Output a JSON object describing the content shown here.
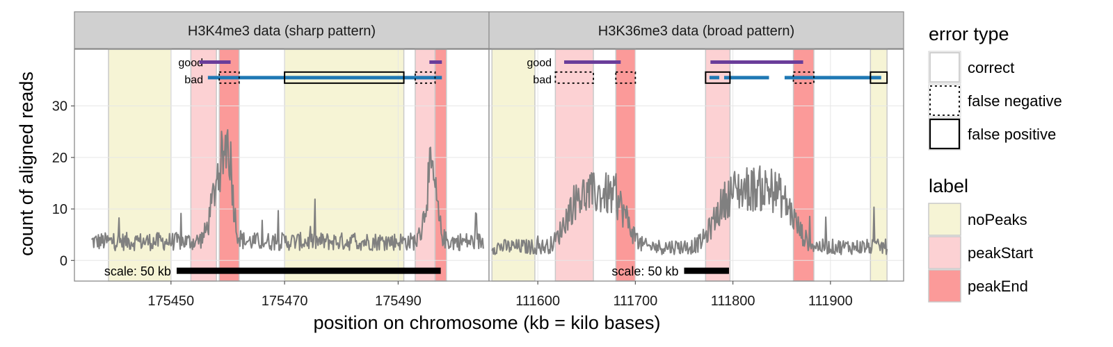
{
  "chart_data": {
    "type": "line",
    "ylabel": "count of aligned reads",
    "xlabel": "position on chromosome (kb = kilo bases)",
    "y_ticks": [
      0,
      10,
      20,
      30
    ],
    "ylim": [
      -4,
      41
    ],
    "grid": true,
    "legend_placement": "right",
    "colors": {
      "noPeaks": "#f6f4d5",
      "peakStart": "#fcd1d3",
      "peakEnd": "#fb9a99",
      "coverage": "#808080",
      "good_model": "#6a3d9a",
      "bad_model": "#1f78b4",
      "strip_bg": "#d0d0d0",
      "panel_border": "#8a8a8a"
    },
    "legend_error": {
      "title": "error type",
      "items": [
        {
          "label": "correct",
          "style": "correct"
        },
        {
          "label": "false negative",
          "style": "fn"
        },
        {
          "label": "false positive",
          "style": "fp"
        }
      ]
    },
    "legend_label": {
      "title": "label",
      "items": [
        {
          "label": "noPeaks",
          "key": "noPeaks"
        },
        {
          "label": "peakStart",
          "key": "peakStart"
        },
        {
          "label": "peakEnd",
          "key": "peakEnd"
        }
      ]
    },
    "panels": [
      {
        "title": "H3K4me3 data (sharp pattern)",
        "xlim": [
          175433,
          175506
        ],
        "x_ticks": [
          {
            "value": 175450,
            "label": "175450"
          },
          {
            "value": 175470,
            "label": "175470"
          },
          {
            "value": 175490,
            "label": "175490"
          }
        ],
        "regions": [
          {
            "type": "noPeaks",
            "start": 175439,
            "end": 175450
          },
          {
            "type": "peakStart",
            "start": 175453.5,
            "end": 175458
          },
          {
            "type": "peakEnd",
            "start": 175458.5,
            "end": 175462
          },
          {
            "type": "noPeaks",
            "start": 175470,
            "end": 175491
          },
          {
            "type": "peakStart",
            "start": 175493,
            "end": 175496.5
          },
          {
            "type": "peakEnd",
            "start": 175496.5,
            "end": 175498.5
          }
        ],
        "model_labels": {
          "good": "good",
          "bad": "bad"
        },
        "good_segments": [
          [
            175455,
            175460.5
          ],
          [
            175495.5,
            175497.7
          ]
        ],
        "bad_segments": [
          [
            175456.5,
            175497.7
          ]
        ],
        "error_boxes": [
          {
            "row": "bad",
            "type": "fn",
            "start": 175458.5,
            "end": 175462
          },
          {
            "type": "fp",
            "row": "bad",
            "start": 175470,
            "end": 175491
          },
          {
            "type": "fn",
            "row": "bad",
            "start": 175493,
            "end": 175496.5
          }
        ],
        "scale_bar": {
          "label": "scale: 50 kb",
          "start": 175451,
          "end": 175497.5
        },
        "coverage_profile": {
          "start": 175436,
          "end": 175505,
          "baseline": 3.5,
          "peaks": [
            {
              "center": 175458.8,
              "width": 1.9,
              "height": 14
            },
            {
              "center": 175460.2,
              "width": 0.9,
              "height": 10
            },
            {
              "center": 175495.8,
              "width": 1.3,
              "height": 13
            }
          ]
        }
      },
      {
        "title": "H3K36me3 data (broad pattern)",
        "xlim": [
          111550,
          111975
        ],
        "x_ticks": [
          {
            "value": 111600,
            "label": "111600"
          },
          {
            "value": 111700,
            "label": "111700"
          },
          {
            "value": 111800,
            "label": "111800"
          },
          {
            "value": 111900,
            "label": "111900"
          }
        ],
        "regions": [
          {
            "type": "noPeaks",
            "start": 111553,
            "end": 111597
          },
          {
            "type": "peakStart",
            "start": 111618,
            "end": 111657
          },
          {
            "type": "peakEnd",
            "start": 111680,
            "end": 111700
          },
          {
            "type": "peakStart",
            "start": 111772,
            "end": 111797
          },
          {
            "type": "peakEnd",
            "start": 111862,
            "end": 111883
          },
          {
            "type": "noPeaks",
            "start": 111941,
            "end": 111958
          }
        ],
        "model_labels": {
          "good": "good",
          "bad": "bad"
        },
        "good_segments": [
          [
            111627,
            111685
          ],
          [
            111777,
            111872
          ]
        ],
        "bad_segments": [
          [
            111776,
            111786
          ],
          [
            111791,
            111837
          ],
          [
            111853,
            111952
          ]
        ],
        "error_boxes": [
          {
            "type": "fn",
            "row": "bad",
            "start": 111618,
            "end": 111657
          },
          {
            "type": "fn",
            "row": "bad",
            "start": 111680,
            "end": 111700
          },
          {
            "type": "fp",
            "row": "bad",
            "start": 111772,
            "end": 111797
          },
          {
            "type": "fn",
            "row": "bad",
            "start": 111862,
            "end": 111883
          },
          {
            "type": "fp",
            "row": "bad",
            "start": 111941,
            "end": 111958
          }
        ],
        "scale_bar": {
          "label": "scale: 50 kb",
          "start": 111750,
          "end": 111796
        },
        "coverage_profile": {
          "start": 111553,
          "end": 111958,
          "baseline": 2.5,
          "peaks": [
            {
              "center": 111660,
              "width": 70,
              "height": 10,
              "flat": true
            },
            {
              "center": 111822,
              "width": 88,
              "height": 11,
              "flat": true
            }
          ]
        }
      }
    ]
  }
}
